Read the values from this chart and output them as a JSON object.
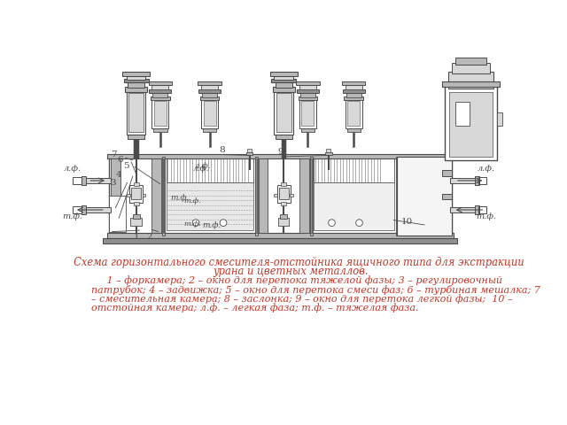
{
  "title_line1": "     Схема горизонтального смесителя-отстойника ящичного типа для экстракции",
  "title_line2": "урана и цветных металлов.",
  "desc_line1": "     1 – форкамера; 2 – окно для перетока тяжелой фазы; 3 – регулировочный",
  "desc_line2": "патрубок; 4 – задвижка; 5 – окно для перетока смеси фаз; 6 – турбиная мешалка; 7",
  "desc_line3": "– смесительная камера; 8 – заслонка; 9 – окно для перетока легкой фазы;  10 –",
  "desc_line4": "отстойная камера; л.ф. – легкая фаза; т.ф. – тяжелая фаза.",
  "text_color": "#c0392b",
  "line_color": "#4a4a4a",
  "fill_light": "#d8d8d8",
  "fill_med": "#b8b8b8",
  "fill_dark": "#909090",
  "bg_color": "#ffffff"
}
